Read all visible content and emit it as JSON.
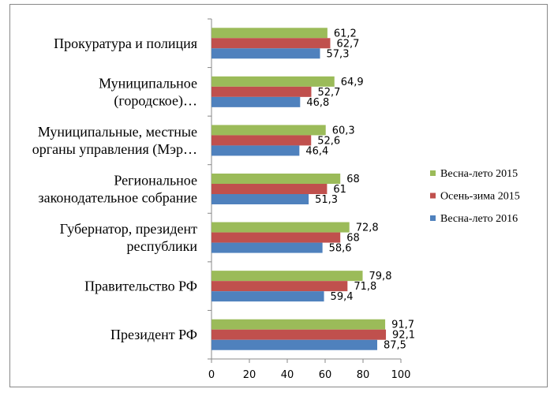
{
  "chart_data": {
    "type": "bar",
    "orientation": "horizontal",
    "categories": [
      [
        "Прокуратура и полиция"
      ],
      [
        "Муниципальное",
        "(городское)…"
      ],
      [
        "Муниципальные, местные",
        "органы управления (Мэр…"
      ],
      [
        "Региональное",
        "законодательное собрание"
      ],
      [
        "Губернатор, президент",
        "республики"
      ],
      [
        "Правительство РФ"
      ],
      [
        "Президент РФ"
      ]
    ],
    "series": [
      {
        "name": "Весна-лето 2015",
        "color": "#9bbb59",
        "values": [
          61.2,
          64.9,
          60.3,
          68,
          72.8,
          79.8,
          91.7
        ],
        "labels": [
          "61,2",
          "64,9",
          "60,3",
          "68",
          "72,8",
          "79,8",
          "91,7"
        ]
      },
      {
        "name": "Осень-зима 2015",
        "color": "#c0504d",
        "values": [
          62.7,
          52.7,
          52.6,
          61,
          68,
          71.8,
          92.1
        ],
        "labels": [
          "62,7",
          "52,7",
          "52,6",
          "61",
          "68",
          "71,8",
          "92,1"
        ]
      },
      {
        "name": "Весна-лето 2016",
        "color": "#4f81bd",
        "values": [
          57.3,
          46.8,
          46.4,
          51.3,
          58.6,
          59.4,
          87.5
        ],
        "labels": [
          "57,3",
          "46,8",
          "46,4",
          "51,3",
          "58,6",
          "59,4",
          "87,5"
        ]
      }
    ],
    "xlim": [
      0,
      100
    ],
    "xticks": [
      "0",
      "20",
      "40",
      "60",
      "80",
      "100"
    ],
    "grid": false,
    "legend": "right"
  }
}
